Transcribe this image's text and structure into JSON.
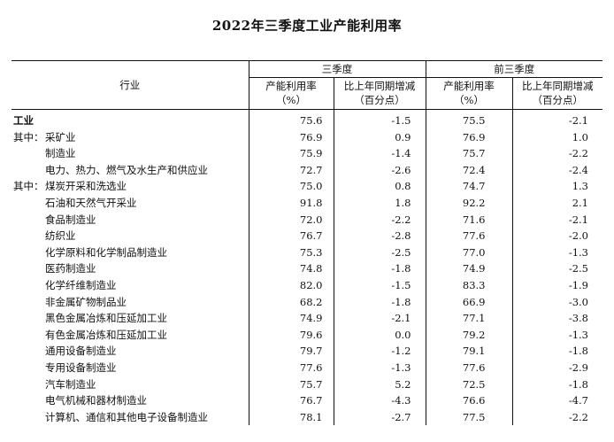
{
  "title": "2022年三季度工业产能利用率",
  "header": {
    "industry": "行业",
    "q3": "三季度",
    "ytd": "前三季度",
    "util_line1": "产能利用率",
    "util_line2": "（%）",
    "chg_line1": "比上年同期增减",
    "chg_line2": "（百分点）"
  },
  "rows": [
    {
      "prefix": "",
      "name": "工业",
      "q3_util": "75.6",
      "q3_chg": "-1.5",
      "ytd_util": "75.5",
      "ytd_chg": "-2.1"
    },
    {
      "prefix": "其中：",
      "name": "采矿业",
      "q3_util": "76.9",
      "q3_chg": "0.9",
      "ytd_util": "76.9",
      "ytd_chg": "1.0"
    },
    {
      "prefix": "",
      "name": "制造业",
      "q3_util": "75.9",
      "q3_chg": "-1.4",
      "ytd_util": "75.7",
      "ytd_chg": "-2.2"
    },
    {
      "prefix": "",
      "name": "电力、热力、燃气及水生产和供应业",
      "q3_util": "72.7",
      "q3_chg": "-2.6",
      "ytd_util": "72.4",
      "ytd_chg": "-2.4"
    },
    {
      "prefix": "其中：",
      "name": "煤炭开采和洗选业",
      "q3_util": "75.0",
      "q3_chg": "0.8",
      "ytd_util": "74.7",
      "ytd_chg": "1.3"
    },
    {
      "prefix": "",
      "name": "石油和天然气开采业",
      "q3_util": "91.8",
      "q3_chg": "1.8",
      "ytd_util": "92.2",
      "ytd_chg": "2.1"
    },
    {
      "prefix": "",
      "name": "食品制造业",
      "q3_util": "72.0",
      "q3_chg": "-2.2",
      "ytd_util": "71.6",
      "ytd_chg": "-2.1"
    },
    {
      "prefix": "",
      "name": "纺织业",
      "q3_util": "76.7",
      "q3_chg": "-2.8",
      "ytd_util": "77.6",
      "ytd_chg": "-2.0"
    },
    {
      "prefix": "",
      "name": "化学原料和化学制品制造业",
      "q3_util": "75.3",
      "q3_chg": "-2.5",
      "ytd_util": "77.0",
      "ytd_chg": "-1.3"
    },
    {
      "prefix": "",
      "name": "医药制造业",
      "q3_util": "74.8",
      "q3_chg": "-1.8",
      "ytd_util": "74.9",
      "ytd_chg": "-2.5"
    },
    {
      "prefix": "",
      "name": "化学纤维制造业",
      "q3_util": "82.0",
      "q3_chg": "-1.5",
      "ytd_util": "83.3",
      "ytd_chg": "-1.9"
    },
    {
      "prefix": "",
      "name": "非金属矿物制品业",
      "q3_util": "68.2",
      "q3_chg": "-1.8",
      "ytd_util": "66.9",
      "ytd_chg": "-3.0"
    },
    {
      "prefix": "",
      "name": "黑色金属冶炼和压延加工业",
      "q3_util": "74.9",
      "q3_chg": "-2.1",
      "ytd_util": "77.1",
      "ytd_chg": "-3.8"
    },
    {
      "prefix": "",
      "name": "有色金属冶炼和压延加工业",
      "q3_util": "79.6",
      "q3_chg": "0.0",
      "ytd_util": "79.2",
      "ytd_chg": "-1.3"
    },
    {
      "prefix": "",
      "name": "通用设备制造业",
      "q3_util": "79.7",
      "q3_chg": "-1.2",
      "ytd_util": "79.1",
      "ytd_chg": "-1.8"
    },
    {
      "prefix": "",
      "name": "专用设备制造业",
      "q3_util": "77.6",
      "q3_chg": "-1.3",
      "ytd_util": "77.6",
      "ytd_chg": "-2.9"
    },
    {
      "prefix": "",
      "name": "汽车制造业",
      "q3_util": "75.7",
      "q3_chg": "5.2",
      "ytd_util": "72.5",
      "ytd_chg": "-1.8"
    },
    {
      "prefix": "",
      "name": "电气机械和器材制造业",
      "q3_util": "76.7",
      "q3_chg": "-4.3",
      "ytd_util": "76.6",
      "ytd_chg": "-4.7"
    },
    {
      "prefix": "",
      "name": "计算机、通信和其他电子设备制造业",
      "q3_util": "78.1",
      "q3_chg": "-2.7",
      "ytd_util": "77.5",
      "ytd_chg": "-2.2"
    }
  ]
}
